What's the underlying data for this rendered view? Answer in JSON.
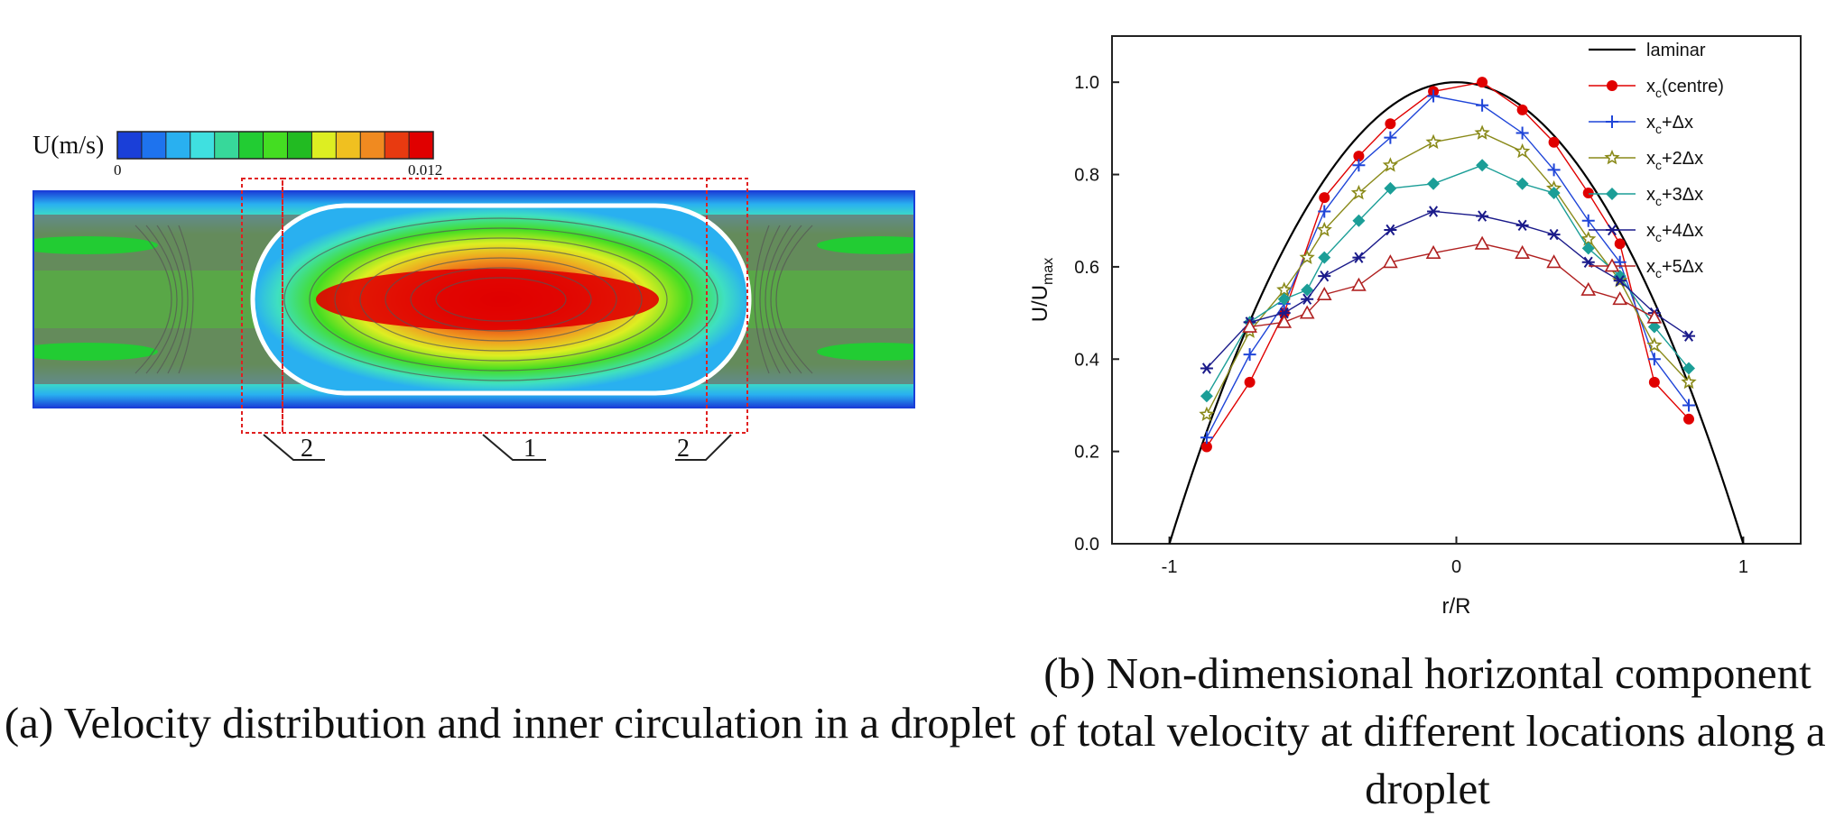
{
  "panel_a": {
    "caption_letter": "(a)",
    "caption_text": "Velocity distribution and inner circulation in a droplet",
    "colorbar": {
      "label": "U(m/s)",
      "min_label": "0",
      "max_label": "0.012",
      "colors": [
        "#1a3fd8",
        "#1e73ee",
        "#29b0f0",
        "#3fe0e0",
        "#37d89a",
        "#22cc33",
        "#44dd22",
        "#22bb22",
        "#ddee22",
        "#f0c020",
        "#f08a20",
        "#e83a10",
        "#e00000"
      ]
    },
    "region_labels": [
      "2",
      "1",
      "2"
    ]
  },
  "panel_b": {
    "caption_letter": "(b)",
    "caption_text": "Non-dimensional horizontal component of total velocity at different locations along a droplet"
  },
  "chart_data": {
    "type": "line",
    "xlabel": "r/R",
    "ylabel": "U/U",
    "ylabel_sub": "max",
    "xlim": [
      -1.2,
      1.2
    ],
    "ylim": [
      0,
      1.1
    ],
    "xticks": [
      -1,
      0,
      1
    ],
    "xtick_labels": [
      "-1",
      "0",
      "1"
    ],
    "yticks": [
      0.0,
      0.2,
      0.4,
      0.6,
      0.8,
      1.0
    ],
    "ytick_labels": [
      "0.0",
      "0.2",
      "0.4",
      "0.6",
      "0.8",
      "1.0"
    ],
    "legend_position": "top-right",
    "grid": false,
    "series": [
      {
        "name": "laminar",
        "legend_main": "laminar",
        "legend_sub": "",
        "legend_tail": "",
        "color": "#000000",
        "marker": "none",
        "fn": "parabola"
      },
      {
        "name": "xc(centre)",
        "legend_main": "x",
        "legend_sub": "c",
        "legend_tail": "(centre)",
        "color": "#e00000",
        "marker": "circle",
        "x": [
          -0.87,
          -0.72,
          -0.6,
          -0.46,
          -0.34,
          -0.23,
          -0.08,
          0.09,
          0.23,
          0.34,
          0.46,
          0.57,
          0.69,
          0.81
        ],
        "y": [
          0.21,
          0.35,
          0.5,
          0.75,
          0.84,
          0.91,
          0.98,
          1.0,
          0.94,
          0.87,
          0.76,
          0.65,
          0.35,
          0.27
        ]
      },
      {
        "name": "xc+Δx",
        "legend_main": "x",
        "legend_sub": "c",
        "legend_tail": "+Δx",
        "color": "#1f45d8",
        "marker": "plus",
        "x": [
          -0.87,
          -0.72,
          -0.6,
          -0.46,
          -0.34,
          -0.23,
          -0.08,
          0.09,
          0.23,
          0.34,
          0.46,
          0.57,
          0.69,
          0.81
        ],
        "y": [
          0.23,
          0.41,
          0.52,
          0.72,
          0.82,
          0.88,
          0.97,
          0.95,
          0.89,
          0.81,
          0.7,
          0.61,
          0.4,
          0.3
        ]
      },
      {
        "name": "xc+2Δx",
        "legend_main": "x",
        "legend_sub": "c",
        "legend_tail": "+2Δx",
        "color": "#8a8a1a",
        "marker": "star",
        "x": [
          -0.87,
          -0.72,
          -0.6,
          -0.52,
          -0.46,
          -0.34,
          -0.23,
          -0.08,
          0.09,
          0.23,
          0.34,
          0.46,
          0.57,
          0.69,
          0.81
        ],
        "y": [
          0.28,
          0.46,
          0.55,
          0.62,
          0.68,
          0.76,
          0.82,
          0.87,
          0.89,
          0.85,
          0.77,
          0.66,
          0.57,
          0.43,
          0.35
        ]
      },
      {
        "name": "xc+3Δx",
        "legend_main": "x",
        "legend_sub": "c",
        "legend_tail": "+3Δx",
        "color": "#1b9e97",
        "marker": "diamond",
        "x": [
          -0.87,
          -0.72,
          -0.6,
          -0.52,
          -0.46,
          -0.34,
          -0.23,
          -0.08,
          0.09,
          0.23,
          0.34,
          0.46,
          0.57,
          0.69,
          0.81
        ],
        "y": [
          0.32,
          0.48,
          0.53,
          0.55,
          0.62,
          0.7,
          0.77,
          0.78,
          0.82,
          0.78,
          0.76,
          0.64,
          0.58,
          0.47,
          0.38
        ]
      },
      {
        "name": "xc+4Δx",
        "legend_main": "x",
        "legend_sub": "c",
        "legend_tail": "+4Δx",
        "color": "#1a1a8a",
        "marker": "asterisk",
        "x": [
          -0.87,
          -0.72,
          -0.6,
          -0.52,
          -0.46,
          -0.34,
          -0.23,
          -0.08,
          0.09,
          0.23,
          0.34,
          0.46,
          0.57,
          0.69,
          0.81
        ],
        "y": [
          0.38,
          0.48,
          0.5,
          0.53,
          0.58,
          0.62,
          0.68,
          0.72,
          0.71,
          0.69,
          0.67,
          0.61,
          0.57,
          0.5,
          0.45
        ]
      },
      {
        "name": "xc+5Δx",
        "legend_main": "x",
        "legend_sub": "c",
        "legend_tail": "+5Δx",
        "color": "#b02020",
        "marker": "triangle",
        "x": [
          -0.72,
          -0.6,
          -0.52,
          -0.46,
          -0.34,
          -0.23,
          -0.08,
          0.09,
          0.23,
          0.34,
          0.46,
          0.57,
          0.69
        ],
        "y": [
          0.47,
          0.48,
          0.5,
          0.54,
          0.56,
          0.61,
          0.63,
          0.65,
          0.63,
          0.61,
          0.55,
          0.53,
          0.49
        ]
      }
    ]
  }
}
